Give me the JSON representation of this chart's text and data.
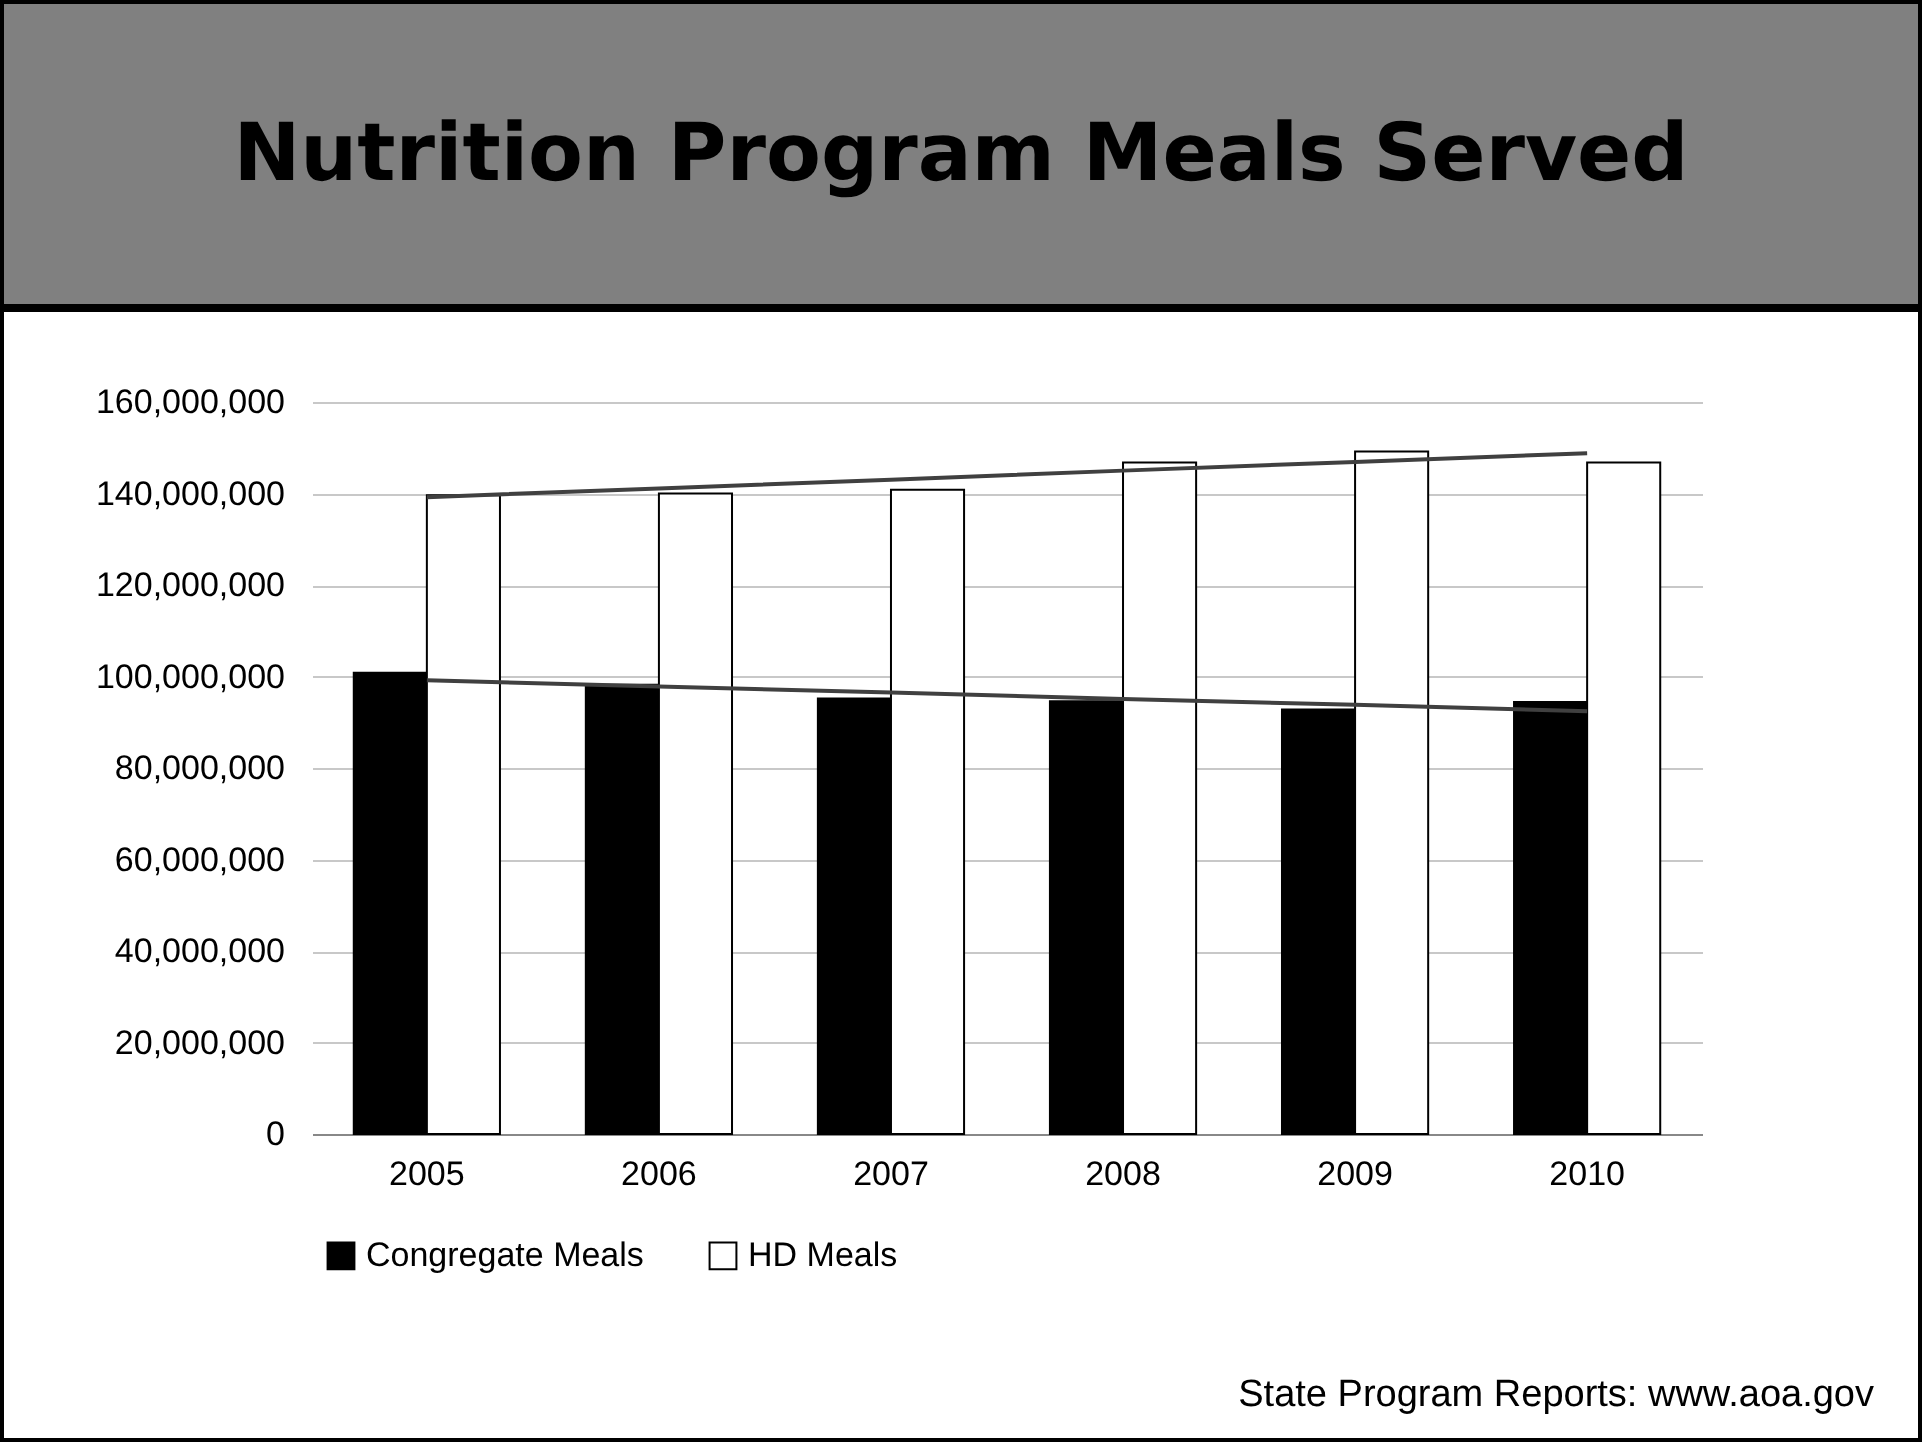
{
  "chart_data": {
    "type": "bar",
    "title": "Nutrition Program Meals Served",
    "categories": [
      "2005",
      "2006",
      "2007",
      "2008",
      "2009",
      "2010"
    ],
    "series": [
      {
        "name": "Congregate Meals",
        "color": "#000000",
        "values": [
          100800000,
          98200000,
          95200000,
          94600000,
          92800000,
          94400000
        ]
      },
      {
        "name": "HD Meals",
        "color": "#ffffff",
        "values": [
          139600000,
          140000000,
          140800000,
          146800000,
          149200000,
          146800000
        ]
      },
      {
        "type": "line",
        "color": "#404040",
        "values": [
          139200000,
          141100000,
          143000000,
          145000000,
          146900000,
          148800000
        ]
      },
      {
        "type": "line",
        "color": "#404040",
        "values": [
          99200000,
          97800000,
          96500000,
          95100000,
          93800000,
          92400000
        ]
      }
    ],
    "ylim": [
      0,
      160000000
    ],
    "yticks": [
      0,
      {
        "value": 20000000,
        "label": "20,000,000"
      },
      {
        "value": 40000000,
        "label": "40,000,000"
      },
      {
        "value": 60000000,
        "label": "60,000,000"
      },
      {
        "value": 80000000,
        "label": "80,000,000"
      },
      {
        "value": 100000000,
        "label": "100,000,000"
      },
      {
        "value": 120000000,
        "label": "120,000,000"
      },
      {
        "value": 140000000,
        "label": "140,000,000"
      },
      {
        "value": 160000000,
        "label": "160,000,000"
      }
    ],
    "grid": "y",
    "legend": "bottom",
    "annotations": [
      "State Program Reports:  www.aoa.gov"
    ]
  }
}
